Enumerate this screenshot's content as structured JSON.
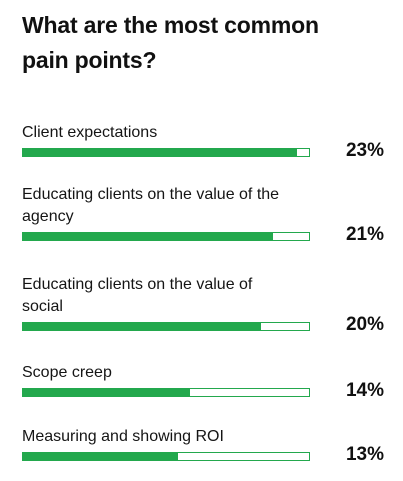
{
  "title": "What are the most common pain points?",
  "colors": {
    "bar_fill": "#23a84d",
    "bar_border": "#23a84d",
    "text": "#111111"
  },
  "chart_data": {
    "type": "bar",
    "orientation": "horizontal",
    "title": "What are the most common pain points?",
    "categories": [
      "Client expectations",
      "Educating clients on the value of the agency",
      "Educating clients on the value of social",
      "Scope creep",
      "Measuring and showing ROI"
    ],
    "values": [
      23,
      21,
      20,
      14,
      13
    ],
    "value_labels": [
      "23%",
      "21%",
      "20%",
      "14%",
      "13%"
    ],
    "xlim": [
      0,
      24
    ],
    "grid": false,
    "legend": "none"
  }
}
